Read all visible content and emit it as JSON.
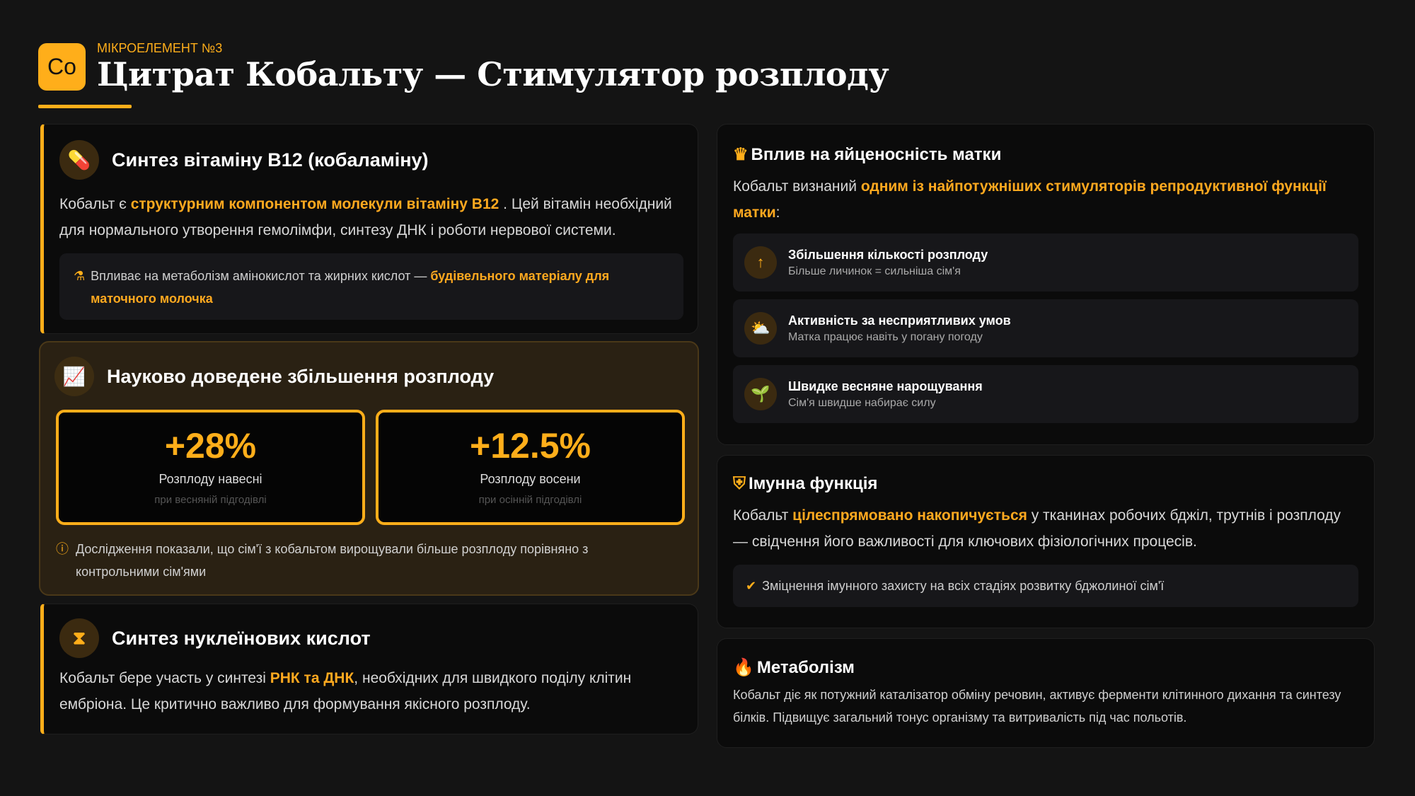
{
  "header": {
    "logo": "Co",
    "kicker": "МІКРОЕЛЕМЕНТ №3",
    "title": "Цитрат Кобальту — Стимулятор розплоду"
  },
  "colors": {
    "accent": "#ffae1a",
    "background": "#141414",
    "card": "#0b0b0b",
    "highlight_card": "#2a2113"
  },
  "b12": {
    "icon": "pills-icon",
    "title": "Синтез вітаміну B12 (кобаламіну)",
    "text_pre": "Кобальт є ",
    "text_hl": "структурним компонентом молекули вітаміну B12",
    "text_post": " . Цей вітамін необхідний для нормального утворення гемолімфи, синтезу ДНК і роботи нервової системи.",
    "note_icon": "flask-icon",
    "note_pre": "Впливає на метаболізм амінокислот та жирних кислот — ",
    "note_hl": "будівельного матеріалу для маточного молочка"
  },
  "research": {
    "icon": "chart-line-icon",
    "title": "Науково доведене збільшення розплоду",
    "stats": [
      {
        "value": "+28%",
        "label": "Розплоду навесні",
        "sub": "при весняній підгодівлі"
      },
      {
        "value": "+12.5%",
        "label": "Розплоду восени",
        "sub": "при осінній підгодівлі"
      }
    ],
    "info_icon": "info-icon",
    "info": "Дослідження показали, що сім'ї з кобальтом вирощували більше розплоду порівняно з контрольними сім'ями"
  },
  "nucleic": {
    "icon": "dna-icon",
    "title": "Синтез нуклеїнових кислот",
    "text_pre": "Кобальт бере участь у синтезі  ",
    "text_hl": "РНК та ДНК",
    "text_post": ", необхідних для швидкого поділу клітин ембріона. Це критично важливо для формування якісного розплоду."
  },
  "queen": {
    "icon": "crown-icon",
    "title": "Вплив на яйценосність матки",
    "text_pre": "Кобальт визнаний ",
    "text_hl": "одним із найпотужніших стимуляторів репродуктивної функції матки",
    "text_post": ":",
    "items": [
      {
        "icon": "arrow-up-icon",
        "title": "Збільшення кількості розплоду",
        "sub": "Більше личинок = сильніша сім'я"
      },
      {
        "icon": "cloud-sun-icon",
        "title": "Активність за несприятливих умов",
        "sub": "Матка працює навіть у погану погоду"
      },
      {
        "icon": "seedling-icon",
        "title": "Швидке весняне нарощування",
        "sub": "Сім'я швидше набирає силу"
      }
    ]
  },
  "immune": {
    "icon": "shield-virus-icon",
    "title": "Імунна функція",
    "text_pre": "Кобальт ",
    "text_hl": "цілеспрямовано накопичується",
    "text_post": "  у тканинах робочих бджіл, трутнів і розплоду — свідчення його важливості для ключових фізіологічних процесів.",
    "check_icon": "check-circle-icon",
    "note": "Зміцнення імунного захисту на всіх стадіях розвитку бджолиної сім'ї"
  },
  "metabolism": {
    "icon": "fire-icon",
    "title": "Метаболізм",
    "text": "Кобальт діє як потужний каталізатор обміну речовин, активує ферменти клітинного дихання та синтезу білків. Підвищує загальний тонус організму та витривалість під час польотів."
  }
}
